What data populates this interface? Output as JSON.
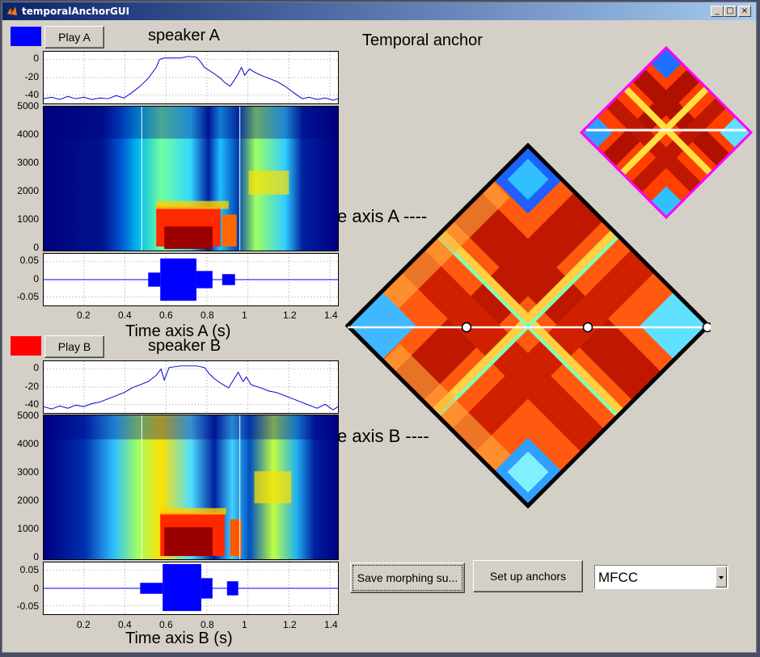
{
  "window": {
    "title": "temporalAnchorGUI",
    "min_glyph": "_",
    "max_glyph": "□",
    "close_glyph": "×"
  },
  "speakerA": {
    "title": "speaker A",
    "play_label": "Play A",
    "color": "#0000ff",
    "power_yticks": [
      "0",
      "-20",
      "-40"
    ],
    "spec_yticks": [
      "5000",
      "4000",
      "3000",
      "2000",
      "1000",
      "0"
    ],
    "wave_yticks": [
      "0.05",
      "0",
      "-0.05"
    ],
    "xticks": [
      "0.2",
      "0.4",
      "0.6",
      "0.8",
      "1",
      "1.2",
      "1.4"
    ],
    "xlabel": "Time axis A (s)"
  },
  "speakerB": {
    "title": "speaker B",
    "play_label": "Play B",
    "color": "#ff0000",
    "power_yticks": [
      "0",
      "-20",
      "-40"
    ],
    "spec_yticks": [
      "5000",
      "4000",
      "3000",
      "2000",
      "1000",
      "0"
    ],
    "wave_yticks": [
      "0.05",
      "0",
      "-0.05"
    ],
    "xticks": [
      "0.2",
      "0.4",
      "0.6",
      "0.8",
      "1",
      "1.2",
      "1.4"
    ],
    "xlabel": "Time axis B (s)"
  },
  "anchor": {
    "title": "Temporal anchor",
    "axisA_label": "e axis A ----",
    "axisB_label": "e axis B ----"
  },
  "controls": {
    "save_label": "Save morphing su...",
    "setup_label": "Set up anchors",
    "feature_value": "MFCC"
  },
  "colors": {
    "overview_border": "#ff00ff",
    "main_border": "#000000",
    "anchor_line": "#ffffff"
  }
}
